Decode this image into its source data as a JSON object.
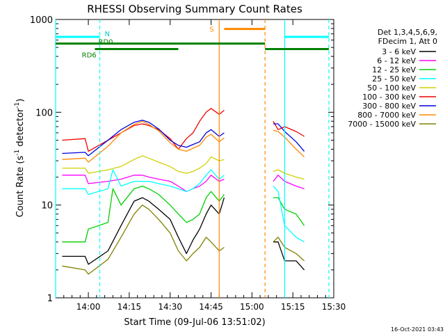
{
  "chart_data": {
    "type": "line",
    "title": "RHESSI Observing Summary Count Rates",
    "xlabel": "Start Time (09-Jul-06 13:51:02)",
    "ylabel_main": "Count Rate (s",
    "ylabel_sup1": "-1",
    "ylabel_mid": " detector",
    "ylabel_sup2": "-1",
    "ylabel_end": ")",
    "yscale": "log",
    "ylim": [
      1,
      1000
    ],
    "xlim_minutes": [
      13.8,
      15.5
    ],
    "x_ticks": [
      {
        "label": "14:00",
        "value": 14.0
      },
      {
        "label": "14:15",
        "value": 14.25
      },
      {
        "label": "14:30",
        "value": 14.5
      },
      {
        "label": "14:45",
        "value": 14.75
      },
      {
        "label": "15:00",
        "value": 15.0
      },
      {
        "label": "15:15",
        "value": 15.25
      },
      {
        "label": "15:30",
        "value": 15.5
      }
    ],
    "y_ticks": [
      {
        "label": "1",
        "value": 1
      },
      {
        "label": "10",
        "value": 10
      },
      {
        "label": "100",
        "value": 100
      },
      {
        "label": "1000",
        "value": 1000
      }
    ],
    "legend_header": [
      "Det 1,3,4,5,6,9,",
      "FDecim 1, Att 0"
    ],
    "legend_position": "right",
    "series": [
      {
        "name": "3 - 6 keV",
        "color": "#000000",
        "x": [
          13.84,
          13.98,
          14.0,
          14.12,
          14.2,
          14.28,
          14.33,
          14.37,
          14.43,
          14.5,
          14.55,
          14.6,
          14.64,
          14.68,
          14.72,
          14.75,
          14.8,
          14.83,
          15.13,
          15.16,
          15.2,
          15.27,
          15.32
        ],
        "y": [
          2.8,
          2.8,
          2.3,
          3.2,
          6,
          11,
          12,
          11,
          9,
          7,
          4.5,
          3,
          4.2,
          5.5,
          8,
          10,
          8,
          12,
          4,
          4,
          2.5,
          2.5,
          2
        ]
      },
      {
        "name": "6 - 12 keV",
        "color": "#ff00ff",
        "x": [
          13.84,
          13.98,
          14.0,
          14.12,
          14.2,
          14.28,
          14.33,
          14.37,
          14.43,
          14.5,
          14.55,
          14.6,
          14.64,
          14.68,
          14.72,
          14.75,
          14.8,
          14.83,
          15.13,
          15.16,
          15.2,
          15.27,
          15.32
        ],
        "y": [
          21,
          21,
          17,
          18,
          19,
          21,
          21,
          20,
          19,
          18,
          16,
          14,
          15,
          16,
          18,
          21,
          18,
          19,
          18,
          21,
          18,
          16,
          15
        ]
      },
      {
        "name": "12 - 25 keV",
        "color": "#00d000",
        "x": [
          13.84,
          13.98,
          14.0,
          14.12,
          14.15,
          14.2,
          14.28,
          14.33,
          14.37,
          14.43,
          14.5,
          14.55,
          14.6,
          14.64,
          14.68,
          14.72,
          14.75,
          14.8,
          14.83,
          15.13,
          15.16,
          15.2,
          15.27,
          15.32
        ],
        "y": [
          4,
          4,
          5.5,
          6.5,
          15,
          10,
          15,
          16,
          15,
          13,
          10,
          8,
          6.5,
          7,
          8,
          12,
          14,
          11,
          13,
          12,
          12,
          9,
          8,
          6
        ]
      },
      {
        "name": "25 - 50 keV",
        "color": "#00ffff",
        "x": [
          13.84,
          13.98,
          14.0,
          14.12,
          14.15,
          14.2,
          14.28,
          14.33,
          14.37,
          14.43,
          14.5,
          14.55,
          14.6,
          14.64,
          14.68,
          14.72,
          14.75,
          14.8,
          14.83,
          15.13,
          15.16,
          15.2,
          15.27,
          15.32
        ],
        "y": [
          15,
          15,
          13,
          15,
          24,
          16,
          18,
          18,
          18,
          17,
          16,
          15,
          14,
          15,
          17,
          21,
          24,
          19,
          21,
          16,
          14,
          6,
          4.5,
          4
        ]
      },
      {
        "name": "50 - 100 keV",
        "color": "#d0d000",
        "x": [
          13.84,
          13.98,
          14.0,
          14.12,
          14.2,
          14.28,
          14.33,
          14.37,
          14.43,
          14.5,
          14.55,
          14.6,
          14.64,
          14.68,
          14.72,
          14.75,
          14.8,
          14.83,
          15.13,
          15.16,
          15.2,
          15.27,
          15.32
        ],
        "y": [
          25,
          25,
          22,
          24,
          26,
          31,
          34,
          32,
          29,
          26,
          23,
          22,
          23,
          25,
          28,
          33,
          30,
          31,
          23,
          24,
          22,
          20,
          19
        ]
      },
      {
        "name": "100 - 300 keV",
        "color": "#ee0000",
        "x": [
          13.84,
          13.98,
          14.0,
          14.12,
          14.2,
          14.28,
          14.33,
          14.37,
          14.43,
          14.5,
          14.55,
          14.6,
          14.64,
          14.68,
          14.72,
          14.75,
          14.8,
          14.83,
          15.13,
          15.16,
          15.2,
          15.27,
          15.32
        ],
        "y": [
          50,
          52,
          38,
          50,
          60,
          72,
          75,
          72,
          65,
          52,
          40,
          52,
          60,
          80,
          100,
          110,
          95,
          105,
          80,
          65,
          70,
          62,
          55
        ]
      },
      {
        "name": "300 - 800 keV",
        "color": "#0000dd",
        "x": [
          13.84,
          13.98,
          14.0,
          14.12,
          14.2,
          14.28,
          14.33,
          14.37,
          14.43,
          14.5,
          14.55,
          14.6,
          14.64,
          14.68,
          14.72,
          14.75,
          14.8,
          14.83,
          15.13,
          15.16,
          15.2,
          15.27,
          15.32
        ],
        "y": [
          36,
          37,
          34,
          50,
          65,
          78,
          82,
          78,
          66,
          50,
          44,
          42,
          45,
          48,
          60,
          65,
          55,
          60,
          75,
          75,
          62,
          48,
          38
        ]
      },
      {
        "name": "800 - 7000 keV",
        "color": "#ff8800",
        "x": [
          13.84,
          13.98,
          14.0,
          14.12,
          14.2,
          14.28,
          14.33,
          14.37,
          14.43,
          14.5,
          14.55,
          14.6,
          14.64,
          14.68,
          14.72,
          14.75,
          14.8,
          14.83,
          15.13,
          15.16,
          15.2,
          15.27,
          15.32
        ],
        "y": [
          31,
          32,
          29,
          43,
          60,
          74,
          80,
          74,
          63,
          47,
          40,
          38,
          41,
          44,
          54,
          58,
          48,
          53,
          64,
          62,
          54,
          40,
          33
        ]
      },
      {
        "name": "7000 - 15000 keV",
        "color": "#808000",
        "x": [
          13.84,
          13.98,
          14.0,
          14.12,
          14.2,
          14.28,
          14.33,
          14.37,
          14.43,
          14.5,
          14.55,
          14.6,
          14.64,
          14.68,
          14.72,
          14.75,
          14.8,
          14.83,
          15.13,
          15.16,
          15.2,
          15.27,
          15.32
        ],
        "y": [
          2.2,
          2.0,
          1.8,
          2.6,
          4.5,
          8,
          10,
          9,
          7,
          5,
          3.2,
          2.5,
          3,
          3.5,
          4.5,
          4,
          3.2,
          3.5,
          4,
          4.5,
          3.5,
          3,
          2.5
        ]
      }
    ],
    "annotations": {
      "labels": [
        "N",
        "RD0",
        "RD6",
        "S"
      ],
      "bars": [
        {
          "label": "N",
          "color": "#00ffff",
          "x_start": 13.8,
          "x_end": 14.07,
          "level": 650
        },
        {
          "label": "N",
          "color": "#00ffff",
          "x_start": 15.2,
          "x_end": 15.47,
          "level": 650
        },
        {
          "label": "RD0",
          "color": "#008000",
          "x_start": 13.8,
          "x_end": 14.55,
          "level": 550
        },
        {
          "label": "RD0",
          "color": "#008000",
          "x_start": 14.55,
          "x_end": 15.08,
          "level": 550
        },
        {
          "label": "RD6",
          "color": "#008000",
          "x_start": 14.04,
          "x_end": 14.55,
          "level": 480
        },
        {
          "label": "RD6",
          "color": "#008000",
          "x_start": 15.08,
          "x_end": 15.47,
          "level": 480
        },
        {
          "label": "S",
          "color": "#ff8800",
          "x_start": 14.83,
          "x_end": 15.08,
          "level": 790
        }
      ],
      "vlines": [
        {
          "color": "#00ffff",
          "x": 13.8,
          "style": "solid"
        },
        {
          "color": "#00ffff",
          "x": 14.07,
          "style": "dashed"
        },
        {
          "color": "#ff8800",
          "x": 14.8,
          "style": "solid"
        },
        {
          "color": "#ff8800",
          "x": 15.08,
          "style": "dashed"
        },
        {
          "color": "#00ffff",
          "x": 15.2,
          "style": "solid"
        },
        {
          "color": "#00ffff",
          "x": 15.47,
          "style": "dashed"
        }
      ]
    },
    "footer_date": "16-Oct-2021 03:43"
  }
}
